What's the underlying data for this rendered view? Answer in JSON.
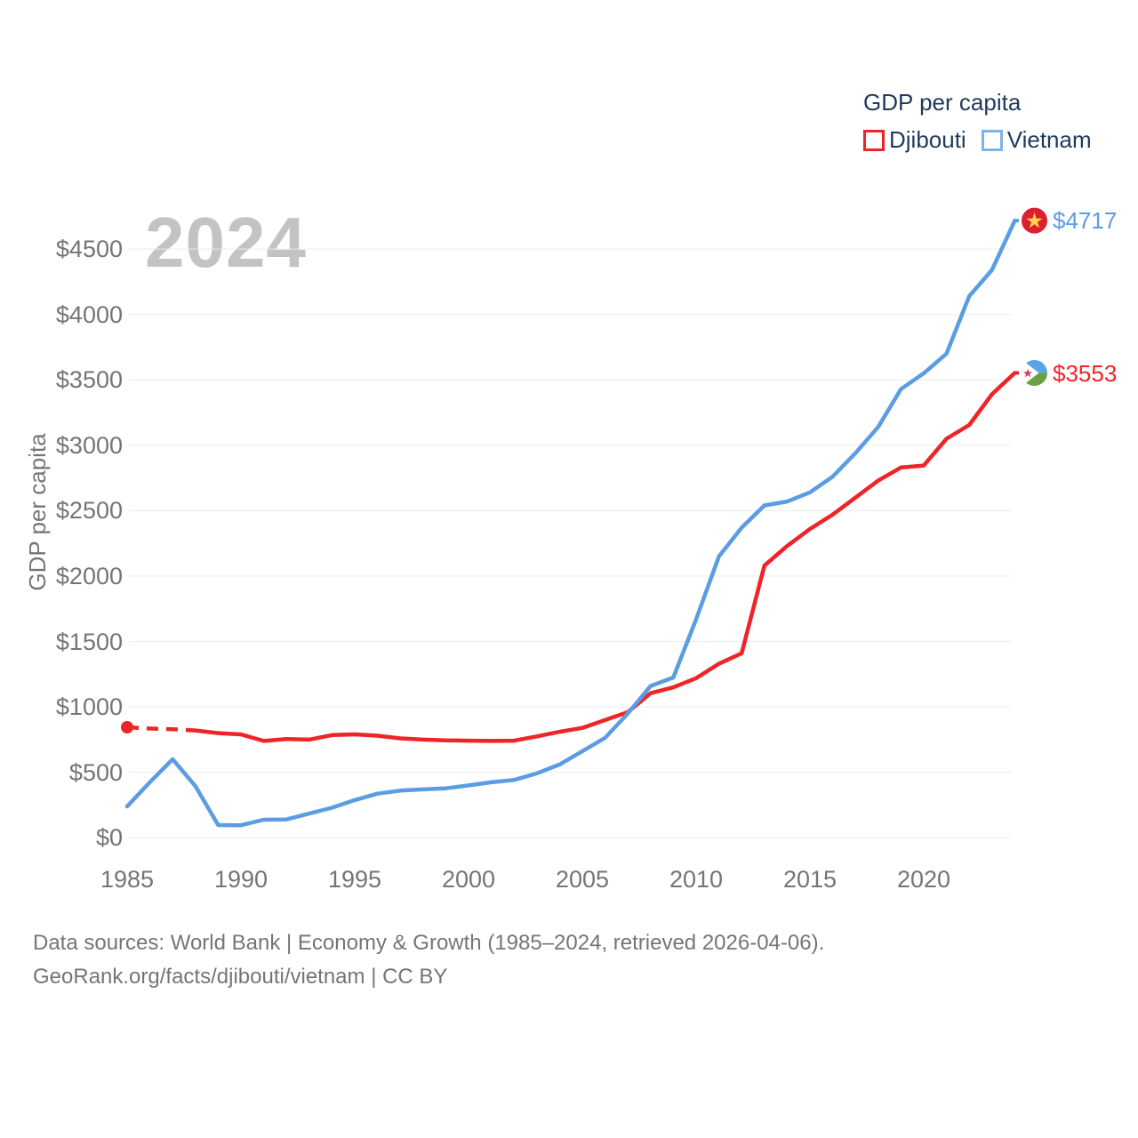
{
  "watermark": "2024",
  "legend": {
    "title": "GDP per capita",
    "items": [
      {
        "label": "Djibouti",
        "color": "#ee2428"
      },
      {
        "label": "Vietnam",
        "color": "#5b9ce3"
      }
    ]
  },
  "y_axis": {
    "title": "GDP per capita",
    "tick_values": [
      0,
      500,
      1000,
      1500,
      2000,
      2500,
      3000,
      3500,
      4000,
      4500
    ],
    "tick_labels": [
      "$0",
      "$500",
      "$1000",
      "$1500",
      "$2000",
      "$2500",
      "$3000",
      "$3500",
      "$4000",
      "$4500"
    ]
  },
  "x_axis": {
    "tick_values": [
      1985,
      1990,
      1995,
      2000,
      2005,
      2010,
      2015,
      2020
    ],
    "tick_labels": [
      "1985",
      "1990",
      "1995",
      "2000",
      "2005",
      "2010",
      "2015",
      "2020"
    ]
  },
  "chart_data": {
    "type": "line",
    "title": "GDP per capita",
    "xlabel": "",
    "ylabel": "GDP per capita",
    "xlim": [
      1985,
      2024
    ],
    "ylim": [
      0,
      4750
    ],
    "grid": "horizontal",
    "legend_position": "top-right",
    "x": [
      1985,
      1986,
      1987,
      1988,
      1989,
      1990,
      1991,
      1992,
      1993,
      1994,
      1995,
      1996,
      1997,
      1998,
      1999,
      2000,
      2001,
      2002,
      2003,
      2004,
      2005,
      2006,
      2007,
      2008,
      2009,
      2010,
      2011,
      2012,
      2013,
      2014,
      2015,
      2016,
      2017,
      2018,
      2019,
      2020,
      2021,
      2022,
      2023,
      2024
    ],
    "series": [
      {
        "name": "Djibouti",
        "color": "#ee2428",
        "end_label": "$3553",
        "final_value": 3553,
        "start_dot_year": 1985,
        "dashed_segment_years": [
          1985,
          1988
        ],
        "flag_icon": "djibouti-flag",
        "values": [
          845,
          835,
          830,
          820,
          800,
          790,
          740,
          755,
          750,
          785,
          790,
          780,
          760,
          750,
          745,
          742,
          740,
          742,
          775,
          810,
          840,
          900,
          960,
          1105,
          1150,
          1220,
          1330,
          1410,
          2080,
          2230,
          2360,
          2470,
          2600,
          2730,
          2830,
          2845,
          3050,
          3155,
          3390,
          3553
        ]
      },
      {
        "name": "Vietnam",
        "color": "#5b9ce3",
        "end_label": "$4717",
        "final_value": 4717,
        "flag_icon": "vietnam-flag",
        "values": [
          240,
          425,
          600,
          395,
          97,
          96,
          138,
          140,
          185,
          230,
          288,
          337,
          360,
          370,
          378,
          400,
          424,
          442,
          492,
          560,
          662,
          764,
          950,
          1160,
          1225,
          1670,
          2150,
          2370,
          2540,
          2570,
          2640,
          2760,
          2940,
          3140,
          3430,
          3550,
          3700,
          4140,
          4340,
          4717
        ]
      }
    ]
  },
  "colors": {
    "djibouti_line": "#ee2428",
    "vietnam_line": "#5b9ce3",
    "gridline": "#ebebeb",
    "tick_text": "#757575",
    "legend_text": "#1f3a5c",
    "watermark_text": "#c3c3c3",
    "vietnam_flag_bg": "#da2130",
    "vietnam_flag_star": "#ffd449",
    "djibouti_flag_blue": "#58a5e6",
    "djibouti_flag_green": "#68a244",
    "djibouti_flag_star": "#d83b53"
  },
  "footer": {
    "line1": "Data sources: World Bank | Economy & Growth (1985–2024, retrieved 2026-04-06).",
    "line2": "GeoRank.org/facts/djibouti/vietnam | CC BY"
  }
}
